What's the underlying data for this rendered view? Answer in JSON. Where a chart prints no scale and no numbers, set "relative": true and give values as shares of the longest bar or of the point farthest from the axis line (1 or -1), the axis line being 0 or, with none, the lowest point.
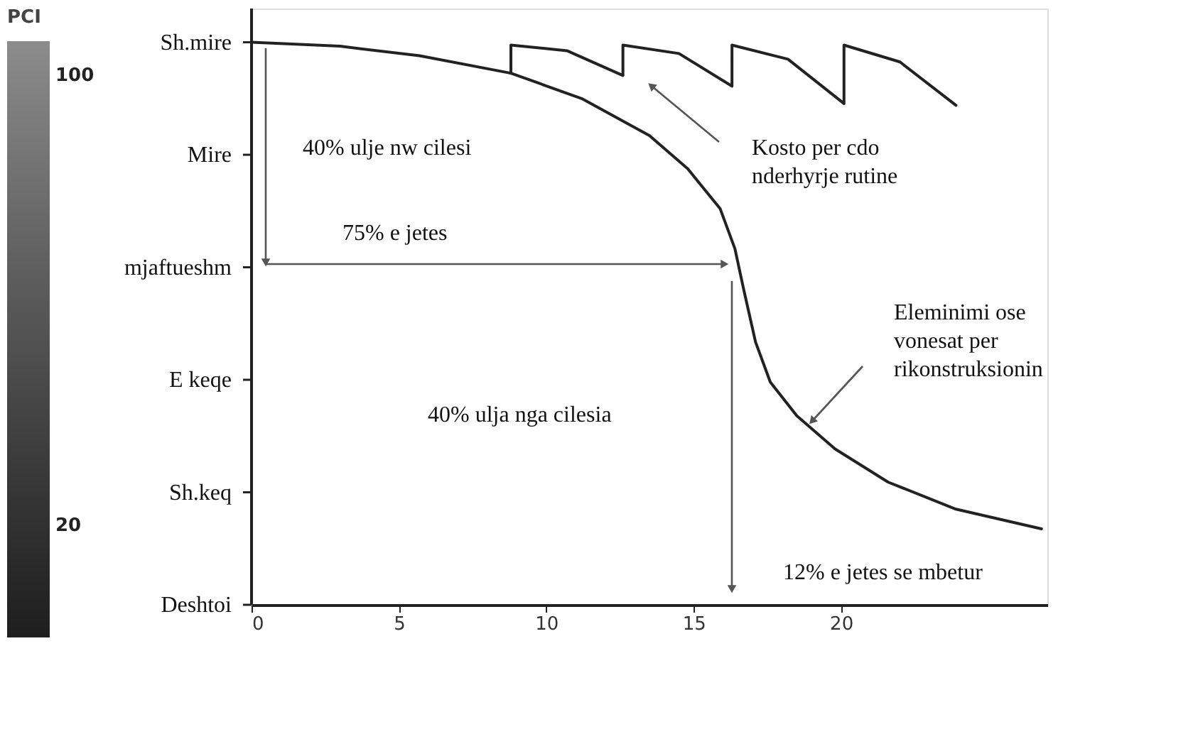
{
  "chart_data": {
    "type": "line",
    "relative": true,
    "xlim": [
      0,
      27
    ],
    "xticks": [
      0,
      5,
      10,
      15,
      20
    ],
    "clabel": "PCI",
    "clim": [
      0,
      106
    ],
    "cticks": [
      20,
      100
    ],
    "grid": false,
    "line_style": "solid",
    "marker": "none",
    "series": [
      {
        "color": "#222222",
        "x": [
          0,
          3,
          5.7,
          8.8,
          11.2,
          13.5,
          14.8,
          15.9,
          16.4,
          16.7,
          17.1,
          17.6,
          18.5,
          19.8,
          21.6,
          23.9,
          26.8
        ],
        "values": [
          1,
          0.993,
          0.976,
          0.945,
          0.9,
          0.834,
          0.775,
          0.704,
          0.633,
          0.56,
          0.467,
          0.396,
          0.336,
          0.277,
          0.218,
          0.17,
          0.135
        ]
      },
      {
        "color": "#222222",
        "x": [
          8.8,
          8.8,
          10.7,
          12.6,
          12.6,
          14.5,
          16.3,
          16.3,
          18.2,
          20.1,
          20.1,
          22,
          23.9
        ],
        "values": [
          0.945,
          0.995,
          0.985,
          0.941,
          0.995,
          0.98,
          0.922,
          0.995,
          0.97,
          0.891,
          0.995,
          0.965,
          0.888
        ]
      }
    ],
    "annotations": [
      "40% ulje nw cilesi",
      "75% e jetes",
      "Kosto per cdo\nnderhyrje rutine",
      "Eleminimi ose\nvonesat per\nrikonstruksionin",
      "40% ulja nga cilesia",
      "12% e jetes se mbetur",
      "Sh.mire",
      "Mire",
      "mjaftueshm",
      "E keqe",
      "Sh.keq",
      "Deshtoi"
    ]
  }
}
